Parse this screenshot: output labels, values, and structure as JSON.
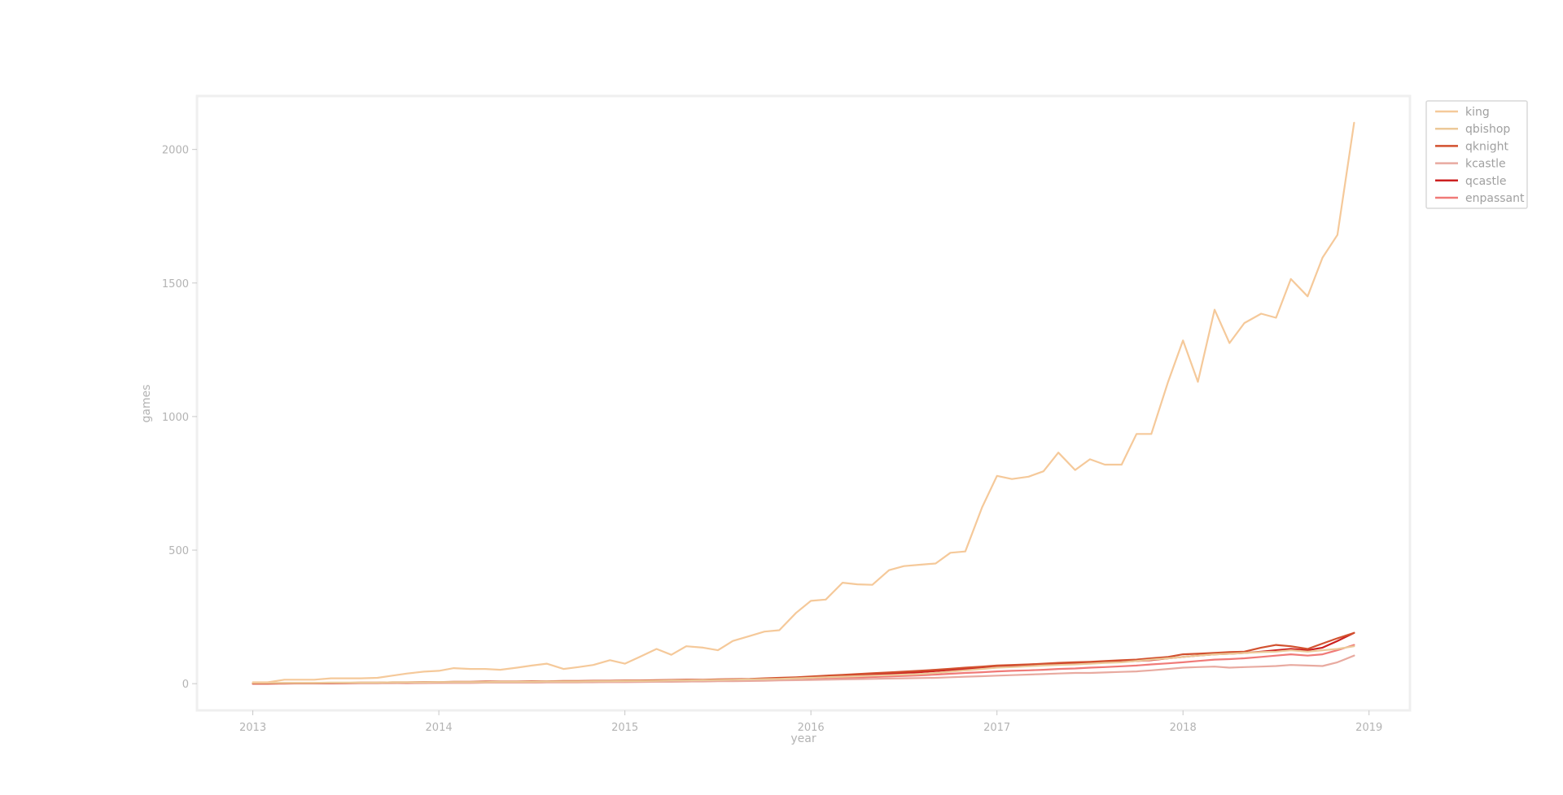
{
  "chart_data": {
    "type": "line",
    "xlabel": "year",
    "ylabel": "games",
    "xlim": [
      2012.7,
      2019.22
    ],
    "ylim": [
      -100,
      2200
    ],
    "x_ticks": [
      2013,
      2014,
      2015,
      2016,
      2017,
      2018,
      2019
    ],
    "x_tick_labels": [
      "2013",
      "2014",
      "2015",
      "2016",
      "2017",
      "2018",
      "2019"
    ],
    "y_ticks": [
      0,
      500,
      1000,
      1500,
      2000
    ],
    "y_tick_labels": [
      "0",
      "500",
      "1000",
      "1500",
      "2000"
    ],
    "grid": false,
    "legend_position": "outside-top-right",
    "x": [
      2013.0,
      2013.08,
      2013.17,
      2013.25,
      2013.33,
      2013.42,
      2013.5,
      2013.58,
      2013.67,
      2013.75,
      2013.83,
      2013.92,
      2014.0,
      2014.08,
      2014.17,
      2014.25,
      2014.33,
      2014.42,
      2014.5,
      2014.58,
      2014.67,
      2014.75,
      2014.83,
      2014.92,
      2015.0,
      2015.08,
      2015.17,
      2015.25,
      2015.33,
      2015.42,
      2015.5,
      2015.58,
      2015.67,
      2015.75,
      2015.83,
      2015.92,
      2016.0,
      2016.08,
      2016.17,
      2016.25,
      2016.33,
      2016.42,
      2016.5,
      2016.58,
      2016.67,
      2016.75,
      2016.83,
      2016.92,
      2017.0,
      2017.08,
      2017.17,
      2017.25,
      2017.33,
      2017.42,
      2017.5,
      2017.58,
      2017.67,
      2017.75,
      2017.83,
      2017.92,
      2018.0,
      2018.08,
      2018.17,
      2018.25,
      2018.33,
      2018.42,
      2018.5,
      2018.58,
      2018.67,
      2018.75,
      2018.83,
      2018.92
    ],
    "series": [
      {
        "name": "king",
        "color": "#f5c99a",
        "values": [
          5,
          5,
          15,
          15,
          15,
          20,
          20,
          20,
          22,
          30,
          38,
          45,
          48,
          58,
          55,
          55,
          52,
          60,
          68,
          75,
          55,
          62,
          70,
          88,
          75,
          100,
          130,
          108,
          140,
          135,
          125,
          160,
          178,
          195,
          200,
          265,
          310,
          315,
          378,
          372,
          370,
          425,
          440,
          445,
          450,
          490,
          495,
          660,
          778,
          766,
          775,
          795,
          865,
          800,
          840,
          820,
          820,
          935,
          935,
          1130,
          1285,
          1130,
          1400,
          1275,
          1350,
          1385,
          1370,
          1515,
          1450,
          1595,
          1680,
          2100
        ]
      },
      {
        "name": "qbishop",
        "color": "#ecc999",
        "values": [
          3,
          3,
          3,
          3,
          3,
          4,
          4,
          4,
          4,
          5,
          5,
          5,
          6,
          6,
          6,
          6,
          7,
          7,
          7,
          8,
          8,
          8,
          9,
          9,
          10,
          10,
          11,
          12,
          12,
          13,
          14,
          15,
          16,
          17,
          18,
          20,
          22,
          24,
          26,
          28,
          30,
          32,
          34,
          36,
          40,
          45,
          50,
          55,
          60,
          62,
          65,
          68,
          70,
          72,
          75,
          78,
          80,
          85,
          90,
          95,
          100,
          105,
          110,
          112,
          115,
          118,
          120,
          125,
          120,
          125,
          130,
          140
        ]
      },
      {
        "name": "qknight",
        "color": "#d2512f",
        "values": [
          1,
          1,
          2,
          2,
          2,
          3,
          3,
          4,
          4,
          5,
          5,
          6,
          6,
          7,
          7,
          8,
          8,
          8,
          9,
          9,
          10,
          10,
          11,
          11,
          12,
          12,
          13,
          14,
          15,
          15,
          16,
          17,
          18,
          20,
          22,
          24,
          27,
          30,
          33,
          36,
          39,
          42,
          45,
          48,
          52,
          56,
          60,
          64,
          68,
          70,
          72,
          75,
          78,
          80,
          82,
          85,
          88,
          90,
          95,
          100,
          110,
          112,
          115,
          118,
          120,
          135,
          145,
          140,
          130,
          150,
          170,
          190
        ]
      },
      {
        "name": "kcastle",
        "color": "#e8aaa0",
        "values": [
          1,
          1,
          1,
          1,
          1,
          2,
          2,
          2,
          2,
          2,
          3,
          3,
          3,
          3,
          3,
          4,
          4,
          4,
          4,
          5,
          5,
          5,
          5,
          6,
          6,
          6,
          7,
          7,
          8,
          8,
          9,
          9,
          10,
          11,
          12,
          13,
          14,
          15,
          16,
          17,
          18,
          19,
          20,
          21,
          22,
          24,
          26,
          28,
          30,
          32,
          34,
          36,
          38,
          40,
          40,
          42,
          44,
          46,
          50,
          55,
          60,
          62,
          64,
          60,
          62,
          64,
          66,
          70,
          68,
          66,
          80,
          105
        ]
      },
      {
        "name": "qcastle",
        "color": "#cc2020",
        "values": [
          0,
          0,
          1,
          1,
          1,
          1,
          2,
          2,
          2,
          3,
          3,
          3,
          4,
          4,
          4,
          5,
          5,
          5,
          6,
          6,
          6,
          7,
          7,
          8,
          8,
          9,
          10,
          10,
          11,
          12,
          13,
          14,
          15,
          16,
          18,
          20,
          22,
          25,
          28,
          31,
          34,
          37,
          40,
          43,
          47,
          51,
          55,
          58,
          62,
          65,
          68,
          70,
          73,
          75,
          78,
          80,
          82,
          85,
          88,
          95,
          100,
          105,
          110,
          112,
          115,
          120,
          125,
          130,
          125,
          135,
          160,
          190
        ]
      },
      {
        "name": "enpassant",
        "color": "#f07a78",
        "values": [
          0,
          0,
          0,
          1,
          1,
          1,
          1,
          2,
          2,
          2,
          2,
          3,
          3,
          3,
          3,
          4,
          4,
          4,
          4,
          5,
          5,
          5,
          6,
          6,
          6,
          7,
          7,
          8,
          8,
          9,
          10,
          11,
          12,
          13,
          14,
          15,
          17,
          19,
          21,
          23,
          25,
          27,
          29,
          31,
          34,
          37,
          40,
          43,
          46,
          48,
          50,
          52,
          55,
          57,
          60,
          62,
          65,
          68,
          72,
          76,
          80,
          85,
          90,
          92,
          95,
          100,
          105,
          110,
          105,
          110,
          125,
          145
        ]
      }
    ]
  }
}
